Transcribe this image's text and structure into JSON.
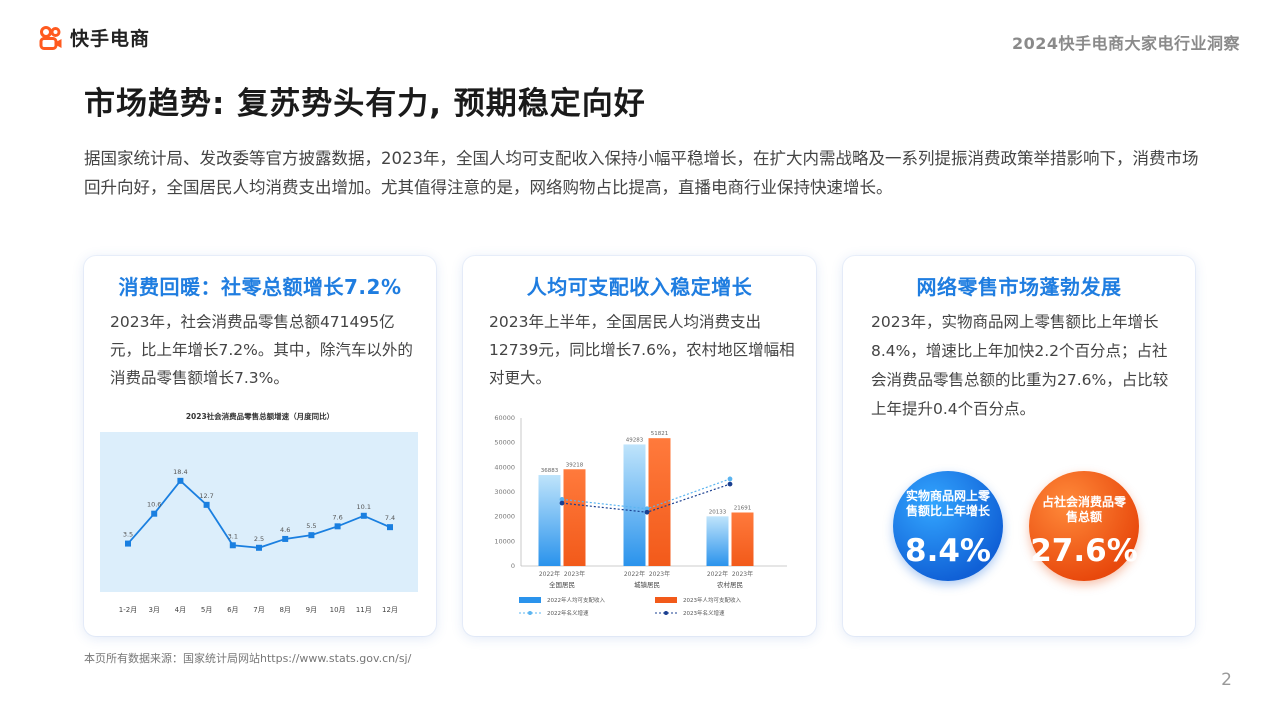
{
  "header": {
    "brand": "快手电商",
    "report_title": "2024快手电商大家电行业洞察"
  },
  "page": {
    "heading": "市场趋势: 复苏势头有力, 预期稳定向好",
    "intro": "据国家统计局、发改委等官方披露数据，2023年，全国人均可支配收入保持小幅平稳增长，在扩大内需战略及一系列提振消费政策举措影响下，消费市场回升向好，全国居民人均消费支出增加。尤其值得注意的是，网络购物占比提高，直播电商行业保持快速增长。",
    "source": "本页所有数据来源：国家统计局网站https://www.stats.gov.cn/sj/",
    "page_number": "2"
  },
  "cards": [
    {
      "title": "消费回暖：社零总额增长7.2%",
      "text": "2023年，社会消费品零售总额471495亿元，比上年增长7.2%。其中，除汽车以外的消费品零售额增长7.3%。"
    },
    {
      "title": "人均可支配收入稳定增长",
      "text": "2023年上半年，全国居民人均消费支出12739元，同比增长7.6%，农村地区增幅相对更大。"
    },
    {
      "title": "网络零售市场蓬勃发展",
      "text": "2023年，实物商品网上零售额比上年增长8.4%，增速比上年加快2.2个百分点；占社会消费品零售总额的比重为27.6%，占比较上年提升0.4个百分点。"
    }
  ],
  "kpis": [
    {
      "label": "实物商品网上零售额比上年增长",
      "value": "8.4%",
      "color": "#1a78e6"
    },
    {
      "label": "占社会消费品零售总额",
      "value": "27.6%",
      "color": "#f25a1a"
    }
  ],
  "chart_data": [
    {
      "type": "line",
      "title": "2023社会消费品零售总额增速（月度同比）",
      "categories": [
        "1-2月",
        "3月",
        "4月",
        "5月",
        "6月",
        "7月",
        "8月",
        "9月",
        "10月",
        "11月",
        "12月"
      ],
      "series": [
        {
          "values": [
            3.5,
            10.6,
            18.4,
            12.7,
            3.1,
            2.5,
            4.6,
            5.5,
            7.6,
            10.1,
            7.4
          ]
        }
      ],
      "labels": [
        "3.5",
        "10.6",
        "18.4",
        "12.7",
        "3.1",
        "2.5",
        "4.6",
        "5.5",
        "7.6",
        "10.1",
        "7.4"
      ],
      "ylim": [
        -8,
        30
      ],
      "grid": false,
      "colors": {
        "line": "#1a7fe0",
        "background": "#dceefb"
      }
    },
    {
      "type": "bar",
      "categories": [
        "全国居民",
        "城镇居民",
        "农村居民"
      ],
      "sub_categories": [
        "2022年",
        "2023年"
      ],
      "y_ticks": [
        "0",
        "10000",
        "20000",
        "30000",
        "40000",
        "50000",
        "60000"
      ],
      "ylim": [
        0,
        60000
      ],
      "series": [
        {
          "name": "2022年人均可支配收入",
          "values": [
            36883,
            49283,
            20133
          ],
          "color": "#2a93ec"
        },
        {
          "name": "2023年人均可支配收入",
          "values": [
            39218,
            51821,
            21691
          ],
          "color": "#f25a1a"
        }
      ],
      "bar_labels": [
        [
          "36883",
          "39218"
        ],
        [
          "49283",
          "51821"
        ],
        [
          "20133",
          "21691"
        ]
      ],
      "line_series": [
        {
          "name": "2022年名义增速",
          "values": [
            27000,
            23200,
            35300
          ],
          "color": "#5ab4f0",
          "style": "dashed"
        },
        {
          "name": "2023年名义增速",
          "values": [
            25500,
            21800,
            33200
          ],
          "color": "#1a3f90",
          "style": "dashed"
        }
      ],
      "legend": "bottom",
      "grid": false
    }
  ]
}
